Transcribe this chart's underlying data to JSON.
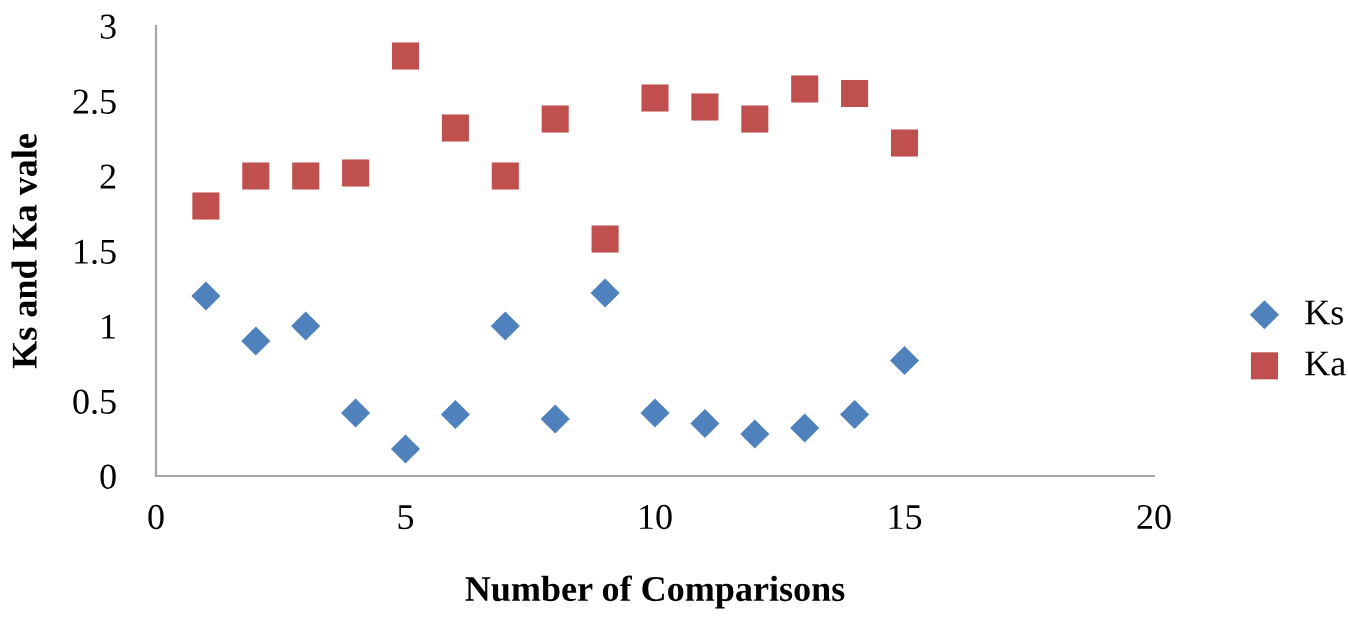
{
  "chart_data": {
    "type": "scatter",
    "xlabel": "Number of Comparisons",
    "ylabel": "Ks and Ka vale",
    "x": [
      1,
      2,
      3,
      4,
      5,
      6,
      7,
      8,
      9,
      10,
      11,
      12,
      13,
      14,
      15
    ],
    "series": [
      {
        "name": "Ks",
        "color": "#4f81bd",
        "marker": "diamond",
        "values": [
          1.2,
          0.9,
          1.0,
          0.42,
          0.18,
          0.41,
          1.0,
          0.38,
          1.22,
          0.42,
          0.35,
          0.28,
          0.32,
          0.41,
          0.77
        ]
      },
      {
        "name": "Ka",
        "color": "#c0504d",
        "marker": "square",
        "values": [
          1.8,
          2.0,
          2.0,
          2.02,
          2.8,
          2.32,
          2.0,
          2.38,
          1.58,
          2.52,
          2.46,
          2.38,
          2.58,
          2.55,
          2.22
        ]
      }
    ],
    "xlim": [
      0,
      20
    ],
    "xticks": [
      0,
      5,
      10,
      15,
      20
    ],
    "ylim": [
      0,
      3
    ],
    "yticks": [
      0,
      0.5,
      1,
      1.5,
      2,
      2.5,
      3
    ],
    "grid": false,
    "legend": "right"
  }
}
